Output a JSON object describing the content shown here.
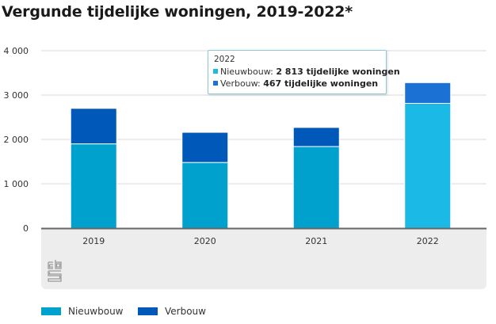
{
  "title": "Vergunde tijdelijke woningen, 2019-2022*",
  "colors": {
    "nieuwbouw": "#00a1cd",
    "verbouw": "#0058b8",
    "nieuwbouw_highlight": "#1bb9e6",
    "verbouw_highlight": "#1b72d4",
    "gridline": "#d8d8d8",
    "axis": "#666666"
  },
  "tooltip": {
    "year": "2022",
    "rows": [
      {
        "series": "Nieuwbouw",
        "label": "Nieuwbouw: ",
        "value": "2 813 tijdelijke woningen"
      },
      {
        "series": "Verbouw",
        "label": "Verbouw: ",
        "value": "467 tijdelijke woningen"
      }
    ]
  },
  "legend": [
    {
      "label": "Nieuwbouw"
    },
    {
      "label": "Verbouw"
    }
  ],
  "logo": "cbs-logo",
  "chart_data": {
    "type": "bar",
    "stacked": true,
    "title": "Vergunde tijdelijke woningen, 2019-2022*",
    "xlabel": "",
    "ylabel": "",
    "categories": [
      "2019",
      "2020",
      "2021",
      "2022"
    ],
    "series": [
      {
        "name": "Nieuwbouw",
        "values": [
          1900,
          1480,
          1840,
          2813
        ]
      },
      {
        "name": "Verbouw",
        "values": [
          800,
          680,
          430,
          467
        ]
      }
    ],
    "ylim": [
      0,
      4000
    ],
    "yticks": [
      0,
      1000,
      2000,
      3000,
      4000
    ],
    "ytick_labels": [
      "0",
      "1 000",
      "2 000",
      "3 000",
      "4 000"
    ],
    "grid": true,
    "legend_position": "bottom-left",
    "highlighted_category": "2022"
  }
}
